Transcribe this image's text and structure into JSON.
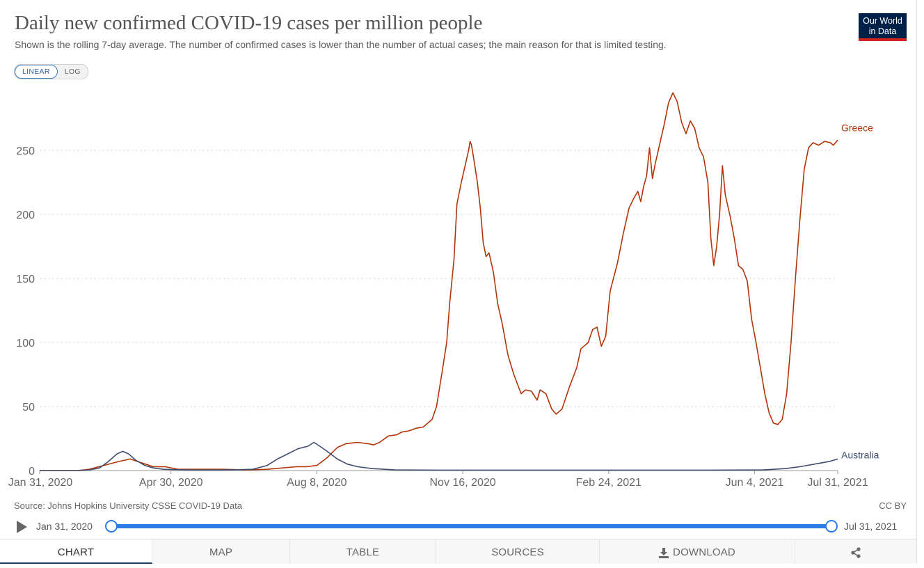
{
  "header": {
    "title": "Daily new confirmed COVID-19 cases per million people",
    "subtitle": "Shown is the rolling 7-day average. The number of confirmed cases is lower than the number of actual cases; the main reason for that is limited testing.",
    "logo_line1": "Our World",
    "logo_line2": "in Data"
  },
  "scale_toggle": {
    "linear_label": "LINEAR",
    "log_label": "LOG",
    "selected": "LINEAR"
  },
  "colors": {
    "greece": "#b13507",
    "australia": "#3f4d6e",
    "accent": "#2c7be5",
    "logo_bg": "#002147",
    "logo_bar": "#ce261e"
  },
  "chart_data": {
    "type": "line",
    "title": "Daily new confirmed COVID-19 cases per million people",
    "ylim": [
      0,
      300
    ],
    "yticks": [
      0,
      50,
      100,
      150,
      200,
      250
    ],
    "ytick_labels": [
      "0",
      "50",
      "100",
      "150",
      "200",
      "250"
    ],
    "xlim": [
      "2020-01-31",
      "2021-07-31"
    ],
    "xtick_labels": [
      "Jan 31, 2020",
      "Apr 30, 2020",
      "Aug 8, 2020",
      "Nov 16, 2020",
      "Feb 24, 2021",
      "Jun 4, 2021",
      "Jul 31, 2021"
    ],
    "xtick_dates": [
      "2020-01-31",
      "2020-04-30",
      "2020-08-08",
      "2020-11-16",
      "2021-02-24",
      "2021-06-04",
      "2021-07-31"
    ],
    "grid": "horizontal dashed",
    "legend": "labels at line ends (right)",
    "series": [
      {
        "name": "Greece",
        "color": "#b13507",
        "points": [
          [
            "2020-01-31",
            0
          ],
          [
            "2020-02-26",
            0
          ],
          [
            "2020-03-05",
            1
          ],
          [
            "2020-03-15",
            4
          ],
          [
            "2020-03-25",
            7
          ],
          [
            "2020-04-02",
            9
          ],
          [
            "2020-04-10",
            6
          ],
          [
            "2020-04-18",
            3
          ],
          [
            "2020-04-26",
            3
          ],
          [
            "2020-05-05",
            1
          ],
          [
            "2020-05-20",
            1
          ],
          [
            "2020-06-05",
            1
          ],
          [
            "2020-06-20",
            0.5
          ],
          [
            "2020-07-05",
            1
          ],
          [
            "2020-07-15",
            2
          ],
          [
            "2020-07-25",
            3
          ],
          [
            "2020-08-01",
            3
          ],
          [
            "2020-08-08",
            4
          ],
          [
            "2020-08-15",
            10
          ],
          [
            "2020-08-22",
            18
          ],
          [
            "2020-08-28",
            21
          ],
          [
            "2020-09-05",
            22
          ],
          [
            "2020-09-12",
            21
          ],
          [
            "2020-09-16",
            20
          ],
          [
            "2020-09-20",
            22
          ],
          [
            "2020-09-26",
            27
          ],
          [
            "2020-10-02",
            28
          ],
          [
            "2020-10-05",
            30
          ],
          [
            "2020-10-10",
            31
          ],
          [
            "2020-10-15",
            33
          ],
          [
            "2020-10-20",
            34
          ],
          [
            "2020-10-26",
            40
          ],
          [
            "2020-10-29",
            50
          ],
          [
            "2020-11-02",
            78
          ],
          [
            "2020-11-05",
            100
          ],
          [
            "2020-11-07",
            130
          ],
          [
            "2020-11-10",
            165
          ],
          [
            "2020-11-12",
            208
          ],
          [
            "2020-11-15",
            225
          ],
          [
            "2020-11-18",
            240
          ],
          [
            "2020-11-20",
            250
          ],
          [
            "2020-11-21",
            257
          ],
          [
            "2020-11-22",
            254
          ],
          [
            "2020-11-24",
            240
          ],
          [
            "2020-11-26",
            225
          ],
          [
            "2020-11-28",
            205
          ],
          [
            "2020-11-30",
            178
          ],
          [
            "2020-12-02",
            167
          ],
          [
            "2020-12-04",
            170
          ],
          [
            "2020-12-07",
            155
          ],
          [
            "2020-12-10",
            130
          ],
          [
            "2020-12-13",
            115
          ],
          [
            "2020-12-17",
            90
          ],
          [
            "2020-12-21",
            75
          ],
          [
            "2020-12-26",
            60
          ],
          [
            "2020-12-29",
            63
          ],
          [
            "2021-01-02",
            62
          ],
          [
            "2021-01-06",
            55
          ],
          [
            "2021-01-08",
            63
          ],
          [
            "2021-01-12",
            60
          ],
          [
            "2021-01-16",
            48
          ],
          [
            "2021-01-19",
            44
          ],
          [
            "2021-01-23",
            48
          ],
          [
            "2021-01-28",
            65
          ],
          [
            "2021-02-02",
            80
          ],
          [
            "2021-02-05",
            95
          ],
          [
            "2021-02-10",
            100
          ],
          [
            "2021-02-13",
            110
          ],
          [
            "2021-02-16",
            112
          ],
          [
            "2021-02-19",
            97
          ],
          [
            "2021-02-22",
            105
          ],
          [
            "2021-02-25",
            140
          ],
          [
            "2021-03-02",
            162
          ],
          [
            "2021-03-06",
            185
          ],
          [
            "2021-03-10",
            205
          ],
          [
            "2021-03-13",
            212
          ],
          [
            "2021-03-16",
            218
          ],
          [
            "2021-03-18",
            210
          ],
          [
            "2021-03-20",
            222
          ],
          [
            "2021-03-22",
            230
          ],
          [
            "2021-03-24",
            252
          ],
          [
            "2021-03-26",
            228
          ],
          [
            "2021-03-28",
            240
          ],
          [
            "2021-03-31",
            255
          ],
          [
            "2021-04-03",
            270
          ],
          [
            "2021-04-06",
            287
          ],
          [
            "2021-04-09",
            295
          ],
          [
            "2021-04-12",
            288
          ],
          [
            "2021-04-15",
            272
          ],
          [
            "2021-04-18",
            263
          ],
          [
            "2021-04-21",
            273
          ],
          [
            "2021-04-24",
            267
          ],
          [
            "2021-04-27",
            252
          ],
          [
            "2021-04-30",
            245
          ],
          [
            "2021-05-03",
            225
          ],
          [
            "2021-05-05",
            182
          ],
          [
            "2021-05-07",
            160
          ],
          [
            "2021-05-09",
            175
          ],
          [
            "2021-05-11",
            200
          ],
          [
            "2021-05-13",
            238
          ],
          [
            "2021-05-15",
            215
          ],
          [
            "2021-05-18",
            200
          ],
          [
            "2021-05-21",
            182
          ],
          [
            "2021-05-24",
            160
          ],
          [
            "2021-05-27",
            157
          ],
          [
            "2021-05-30",
            148
          ],
          [
            "2021-06-02",
            118
          ],
          [
            "2021-06-05",
            100
          ],
          [
            "2021-06-08",
            80
          ],
          [
            "2021-06-11",
            60
          ],
          [
            "2021-06-14",
            45
          ],
          [
            "2021-06-17",
            37
          ],
          [
            "2021-06-20",
            36
          ],
          [
            "2021-06-23",
            40
          ],
          [
            "2021-06-26",
            60
          ],
          [
            "2021-06-29",
            100
          ],
          [
            "2021-07-02",
            150
          ],
          [
            "2021-07-05",
            195
          ],
          [
            "2021-07-08",
            235
          ],
          [
            "2021-07-11",
            252
          ],
          [
            "2021-07-14",
            256
          ],
          [
            "2021-07-18",
            254
          ],
          [
            "2021-07-22",
            257
          ],
          [
            "2021-07-26",
            256
          ],
          [
            "2021-07-28",
            254
          ],
          [
            "2021-07-31",
            258
          ]
        ]
      },
      {
        "name": "Australia",
        "color": "#3f4d6e",
        "points": [
          [
            "2020-01-31",
            0
          ],
          [
            "2020-02-28",
            0
          ],
          [
            "2020-03-05",
            0.5
          ],
          [
            "2020-03-12",
            2
          ],
          [
            "2020-03-18",
            7
          ],
          [
            "2020-03-24",
            13
          ],
          [
            "2020-03-28",
            15
          ],
          [
            "2020-04-01",
            13
          ],
          [
            "2020-04-06",
            8
          ],
          [
            "2020-04-12",
            4
          ],
          [
            "2020-04-18",
            2
          ],
          [
            "2020-04-25",
            1
          ],
          [
            "2020-05-10",
            0.5
          ],
          [
            "2020-06-10",
            0.5
          ],
          [
            "2020-06-25",
            1
          ],
          [
            "2020-07-05",
            4
          ],
          [
            "2020-07-12",
            9
          ],
          [
            "2020-07-19",
            13
          ],
          [
            "2020-07-26",
            17
          ],
          [
            "2020-08-02",
            19
          ],
          [
            "2020-08-06",
            22
          ],
          [
            "2020-08-10",
            19
          ],
          [
            "2020-08-15",
            15
          ],
          [
            "2020-08-22",
            9
          ],
          [
            "2020-08-29",
            5
          ],
          [
            "2020-09-05",
            3
          ],
          [
            "2020-09-15",
            1.5
          ],
          [
            "2020-10-01",
            0.5
          ],
          [
            "2020-11-01",
            0.3
          ],
          [
            "2021-01-15",
            0.3
          ],
          [
            "2021-05-01",
            0.3
          ],
          [
            "2021-06-10",
            0.5
          ],
          [
            "2021-06-25",
            1.5
          ],
          [
            "2021-07-05",
            3
          ],
          [
            "2021-07-15",
            5
          ],
          [
            "2021-07-25",
            7
          ],
          [
            "2021-07-31",
            9
          ]
        ]
      }
    ]
  },
  "source_text": "Source: Johns Hopkins University CSSE COVID-19 Data",
  "license_text": "CC BY",
  "timeline": {
    "start_label": "Jan 31, 2020",
    "end_label": "Jul 31, 2021"
  },
  "tabs": [
    {
      "label": "CHART",
      "active": true
    },
    {
      "label": "MAP"
    },
    {
      "label": "TABLE"
    },
    {
      "label": "SOURCES"
    },
    {
      "label": "DOWNLOAD"
    },
    {
      "label": ""
    }
  ],
  "icons": {
    "play": "play-icon",
    "download": "download-icon",
    "share": "share-icon"
  }
}
